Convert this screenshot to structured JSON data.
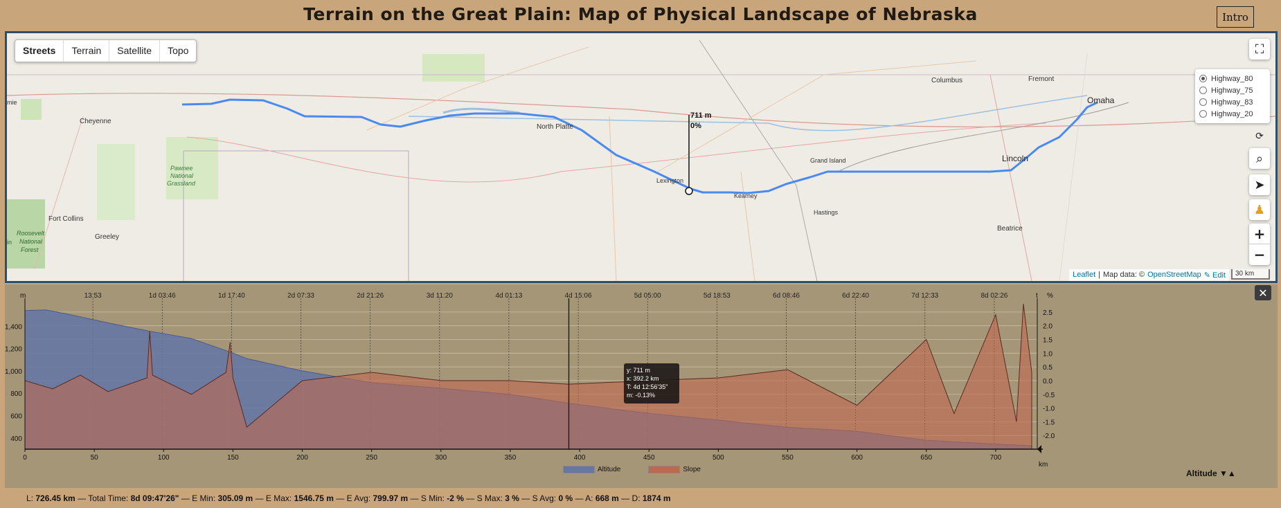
{
  "header": {
    "title": "Terrain on the Great Plain: Map of Physical Landscape of Nebraska",
    "intro_label": "Intro"
  },
  "map": {
    "layer_tabs": [
      "Streets",
      "Terrain",
      "Satellite",
      "Topo"
    ],
    "active_layer": "Streets",
    "routes": [
      {
        "label": "Highway_80",
        "selected": true
      },
      {
        "label": "Highway_75",
        "selected": false
      },
      {
        "label": "Highway_83",
        "selected": false
      },
      {
        "label": "Highway_20",
        "selected": false
      }
    ],
    "place_labels": {
      "cheyenne": "Cheyenne",
      "fort_collins": "Fort Collins",
      "greeley": "Greeley",
      "north_platte": "North Platte",
      "lexington": "Lexington",
      "kearney": "Kearney",
      "grand_island": "Grand Island",
      "hastings": "Hastings",
      "columbus": "Columbus",
      "fremont": "Fremont",
      "omaha": "Omaha",
      "lincoln": "Lincoln",
      "beatrice": "Beatrice",
      "pawnee": "Pawnee National Grassland",
      "pawnee_1": "Pawnee",
      "pawnee_2": "National",
      "pawnee_3": "Grassland",
      "roosevelt_1": "Roosevelt",
      "roosevelt_2": "National",
      "roosevelt_3": "Forest",
      "edge_left": "mie",
      "edge_left2": "in"
    },
    "marker": {
      "altitude": "711 m",
      "slope": "0%"
    },
    "attribution": {
      "leaflet": "Leaflet",
      "sep": "|",
      "map_data": "Map data: ©",
      "osm": "OpenStreetMap",
      "edit": "✎ Edit"
    },
    "scale": "30 km",
    "controls": {
      "fullscreen_icon": "⛶",
      "spinner_icon": "⟳",
      "search_icon": "⌕",
      "locate_icon": "➤",
      "pegman_icon": "♟",
      "zoom_in": "+",
      "zoom_out": "−"
    },
    "route_color": "#4a89f0"
  },
  "profile": {
    "close_label": "✕",
    "y_unit": "m",
    "y2_unit": "%",
    "time_unit": "t",
    "x_unit": "km",
    "time_labels": [
      "13:53",
      "1d 03:46",
      "1d 17:40",
      "2d 07:33",
      "2d 21:26",
      "3d 11:20",
      "4d 01:13",
      "4d 15:06",
      "5d 05:00",
      "5d 18:53",
      "6d 08:46",
      "6d 22:40",
      "7d 12:33",
      "8d 02:26"
    ],
    "tooltip": {
      "y": "y: 711 m",
      "x": "x: 392.2 km",
      "t": "T: 4d 12:56'35\"",
      "m": "m: -0.13%"
    },
    "legend": {
      "altitude": "Altitude",
      "slope": "Slope"
    },
    "altitude_toggle": "Altitude ▼▲",
    "altitude_color": "#6677a4",
    "slope_color": "#c0684f"
  },
  "chart_data": {
    "type": "area",
    "xlabel": "km",
    "ylabel": "m",
    "xlim": [
      0,
      730
    ],
    "ylim": [
      300,
      1600
    ],
    "y2lim": [
      -2.5,
      2.8
    ],
    "x_ticks": [
      0,
      50,
      100,
      150,
      200,
      250,
      300,
      350,
      400,
      450,
      500,
      550,
      600,
      650,
      700
    ],
    "y_ticks": [
      400,
      600,
      800,
      1000,
      1200,
      1400
    ],
    "y2_ticks": [
      -2.0,
      -1.5,
      -1.0,
      -0.5,
      0.0,
      0.5,
      1.0,
      1.5,
      2.0,
      2.5
    ],
    "series": [
      {
        "name": "Altitude",
        "x": [
          0,
          15,
          30,
          60,
          90,
          120,
          150,
          160,
          200,
          250,
          300,
          350,
          392,
          450,
          500,
          550,
          600,
          650,
          700,
          726
        ],
        "values": [
          1540,
          1546,
          1510,
          1430,
          1355,
          1290,
          1160,
          1110,
          1000,
          895,
          845,
          790,
          711,
          620,
          560,
          495,
          460,
          380,
          345,
          330
        ]
      },
      {
        "name": "Slope",
        "x": [
          0,
          20,
          40,
          60,
          88,
          90,
          92,
          120,
          145,
          148,
          150,
          160,
          200,
          250,
          300,
          350,
          392,
          450,
          500,
          550,
          600,
          650,
          670,
          700,
          715,
          720,
          726
        ],
        "values": [
          0.0,
          -0.3,
          0.2,
          -0.4,
          0.1,
          1.8,
          0.2,
          -0.5,
          0.3,
          1.4,
          0.1,
          -1.7,
          0.0,
          0.3,
          0.0,
          0.0,
          -0.13,
          0.0,
          0.1,
          0.4,
          -0.9,
          1.5,
          -1.2,
          2.4,
          -1.5,
          2.8,
          0.3
        ]
      }
    ]
  },
  "summary": {
    "length": "726.45 km",
    "total_time": "8d 09:47'26\"",
    "e_min": "305.09 m",
    "e_max": "1546.75 m",
    "e_avg": "799.97 m",
    "s_min": "-2 %",
    "s_max": "3 %",
    "s_avg": "0 %",
    "ascent": "668 m",
    "descent": "1874 m"
  }
}
